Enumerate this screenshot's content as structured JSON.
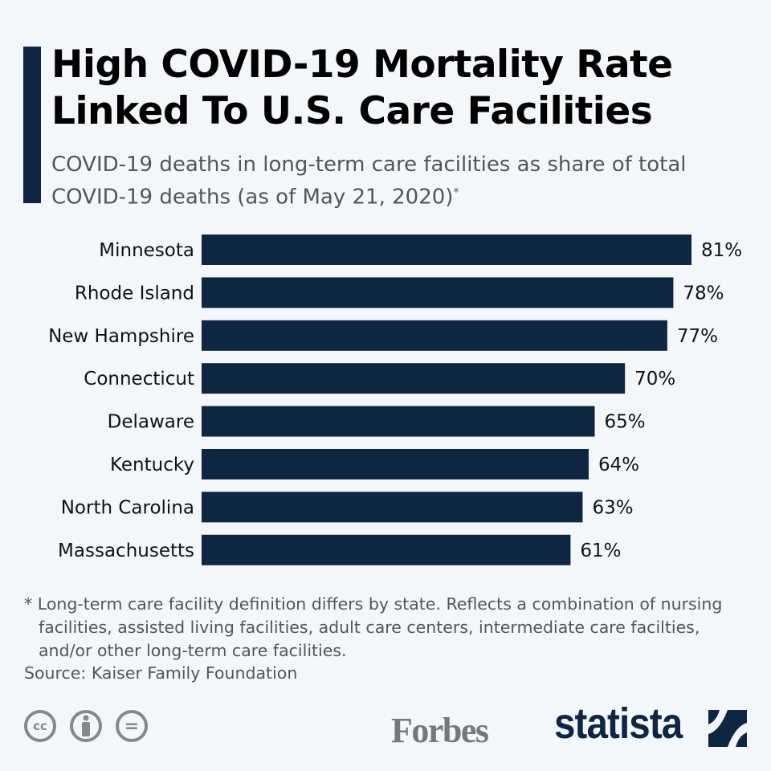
{
  "title": "High COVID-19 Mortality Rate Linked To U.S. Care Facilities",
  "subtitle": "COVID-19 deaths in long-term care facilities as share of total COVID-19 deaths (as of May 21, 2020)",
  "subtitle_marker": "*",
  "footnote": "* Long-term care facility definition differs by state. Reflects a combination of nursing facilities, assisted living facilities, adult care centers, intermediate care facilties, and/or other long-term care facilities.",
  "source": "Source: Kaiser Family Foundation",
  "logos": {
    "forbes": "Forbes",
    "statista": "statista",
    "license_icons": [
      "cc-icon",
      "attribution-icon",
      "no-derivatives-icon"
    ],
    "cc_text": "cc",
    "nd_text": "="
  },
  "colors": {
    "bar": "#0f2642",
    "background": "#f4f7fa"
  },
  "chart_data": {
    "type": "bar",
    "orientation": "horizontal",
    "categories": [
      "Minnesota",
      "Rhode Island",
      "New Hampshire",
      "Connecticut",
      "Delaware",
      "Kentucky",
      "North Carolina",
      "Massachusetts"
    ],
    "values": [
      81,
      78,
      77,
      70,
      65,
      64,
      63,
      61
    ],
    "value_suffix": "%",
    "grid": false
  }
}
